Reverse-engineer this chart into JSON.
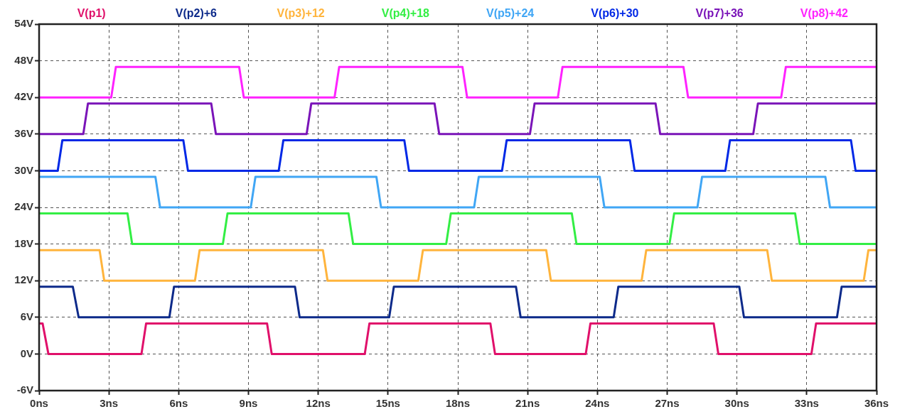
{
  "chart_data": {
    "type": "line",
    "xlim": [
      0,
      36
    ],
    "ylim": [
      -6,
      54
    ],
    "xticks": [
      {
        "value": 0,
        "label": "0ns"
      },
      {
        "value": 3,
        "label": "3ns"
      },
      {
        "value": 6,
        "label": "6ns"
      },
      {
        "value": 9,
        "label": "9ns"
      },
      {
        "value": 12,
        "label": "12ns"
      },
      {
        "value": 15,
        "label": "15ns"
      },
      {
        "value": 18,
        "label": "18ns"
      },
      {
        "value": 21,
        "label": "21ns"
      },
      {
        "value": 24,
        "label": "24ns"
      },
      {
        "value": 27,
        "label": "27ns"
      },
      {
        "value": 30,
        "label": "30ns"
      },
      {
        "value": 33,
        "label": "33ns"
      },
      {
        "value": 36,
        "label": "36ns"
      }
    ],
    "yticks": [
      {
        "value": -6,
        "label": "-6V"
      },
      {
        "value": 0,
        "label": "0V"
      },
      {
        "value": 6,
        "label": "6V"
      },
      {
        "value": 12,
        "label": "12V"
      },
      {
        "value": 18,
        "label": "18V"
      },
      {
        "value": 24,
        "label": "24V"
      },
      {
        "value": 30,
        "label": "30V"
      },
      {
        "value": 36,
        "label": "36V"
      },
      {
        "value": 42,
        "label": "42V"
      },
      {
        "value": 48,
        "label": "48V"
      },
      {
        "value": 54,
        "label": "54V"
      }
    ],
    "grid": true,
    "legend": "top",
    "marker": "none",
    "series": [
      {
        "name": "V(p1)",
        "color": "#e0106a",
        "x": [
          0,
          0.15,
          0.4,
          4.4,
          4.6,
          9.8,
          10,
          14,
          14.2,
          19.4,
          19.6,
          23.5,
          23.7,
          29,
          29.2,
          33.2,
          33.4,
          36
        ],
        "values": [
          5,
          5,
          0,
          0,
          5,
          5,
          0,
          0,
          5,
          5,
          0,
          0,
          5,
          5,
          0,
          0,
          5,
          5
        ]
      },
      {
        "name": "V(p2)+6",
        "color": "#0d2a8a",
        "x": [
          0,
          1.45,
          1.7,
          5.6,
          5.8,
          11,
          11.2,
          15.05,
          15.25,
          20.5,
          20.7,
          24.7,
          24.9,
          30.1,
          30.3,
          34.3,
          34.5,
          36
        ],
        "values": [
          11,
          11,
          6,
          6,
          11,
          11,
          6,
          6,
          11,
          11,
          6,
          6,
          11,
          11,
          6,
          6,
          11,
          11
        ]
      },
      {
        "name": "V(p3)+12",
        "color": "#ffb43c",
        "x": [
          0,
          2.6,
          2.8,
          6.7,
          6.9,
          12.2,
          12.4,
          16.3,
          16.5,
          21.8,
          22,
          25.9,
          26.1,
          31.3,
          31.5,
          35.45,
          35.65,
          36
        ],
        "values": [
          17,
          17,
          12,
          12,
          17,
          17,
          12,
          12,
          17,
          17,
          12,
          12,
          17,
          17,
          12,
          12,
          17,
          17
        ]
      },
      {
        "name": "V(p4)+18",
        "color": "#33ee44",
        "x": [
          0,
          3.8,
          4,
          7.9,
          8.1,
          13.3,
          13.5,
          17.5,
          17.7,
          22.9,
          23.1,
          27.1,
          27.3,
          32.5,
          32.7,
          36
        ],
        "values": [
          23,
          23,
          18,
          18,
          23,
          23,
          18,
          18,
          23,
          23,
          18,
          18,
          23,
          23,
          18,
          18
        ]
      },
      {
        "name": "V(p5)+24",
        "color": "#40a6f5",
        "x": [
          0,
          5,
          5.2,
          9.1,
          9.3,
          14.5,
          14.7,
          18.7,
          18.9,
          24.1,
          24.3,
          28.3,
          28.5,
          33.8,
          34,
          36
        ],
        "values": [
          29,
          29,
          24,
          24,
          29,
          29,
          24,
          24,
          29,
          29,
          24,
          24,
          29,
          29,
          24,
          24
        ]
      },
      {
        "name": "V(p6)+30",
        "color": "#0028e6",
        "x": [
          0,
          0.8,
          1,
          6.2,
          6.4,
          10.3,
          10.5,
          15.7,
          15.9,
          19.9,
          20.1,
          25.4,
          25.6,
          29.5,
          29.7,
          34.9,
          35.1,
          36
        ],
        "values": [
          30,
          30,
          35,
          35,
          30,
          30,
          35,
          35,
          30,
          30,
          35,
          35,
          30,
          30,
          35,
          35,
          30,
          30
        ]
      },
      {
        "name": "V(p7)+36",
        "color": "#7a14b8",
        "x": [
          0,
          1.9,
          2.1,
          7.4,
          7.6,
          11.5,
          11.7,
          17,
          17.2,
          21.1,
          21.3,
          26.5,
          26.7,
          30.7,
          30.9,
          36
        ],
        "values": [
          36,
          36,
          41,
          41,
          36,
          36,
          41,
          41,
          36,
          36,
          41,
          41,
          36,
          36,
          41,
          41
        ]
      },
      {
        "name": "V(p8)+42",
        "color": "#ff22ff",
        "x": [
          0,
          3.1,
          3.3,
          8.6,
          8.8,
          12.7,
          12.9,
          18.2,
          18.4,
          22.3,
          22.5,
          27.7,
          27.9,
          31.9,
          32.1,
          36
        ],
        "values": [
          42,
          42,
          47,
          47,
          42,
          42,
          47,
          47,
          42,
          42,
          47,
          47,
          42,
          42,
          47,
          47
        ]
      }
    ]
  }
}
